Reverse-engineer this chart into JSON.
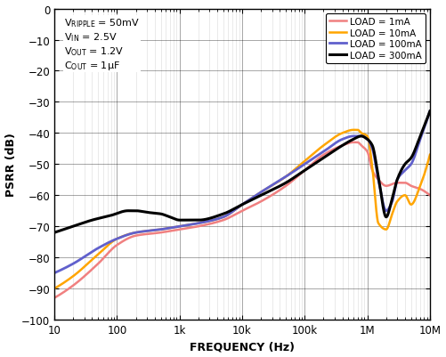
{
  "xlabel": "FREQUENCY (Hz)",
  "ylabel": "PSRR (dB)",
  "xlim": [
    10,
    10000000.0
  ],
  "ylim": [
    -100,
    0
  ],
  "yticks": [
    0,
    -10,
    -20,
    -30,
    -40,
    -50,
    -60,
    -70,
    -80,
    -90,
    -100
  ],
  "legend_labels": [
    "LOAD = 1mA",
    "LOAD = 10mA",
    "LOAD = 100mA",
    "LOAD = 300mA"
  ],
  "colors": [
    "#F08080",
    "#FFA500",
    "#6060CC",
    "#000000"
  ],
  "background_color": "#FFFFFF",
  "grid_major_color": "#000000",
  "grid_minor_color": "#999999",
  "curve_1ma": {
    "freqs": [
      10,
      20,
      50,
      100,
      200,
      500,
      1000,
      2000,
      5000,
      10000,
      20000,
      50000,
      100000,
      200000,
      400000,
      600000,
      700000,
      800000,
      1000000,
      1200000,
      1500000,
      2000000,
      3000000,
      4000000,
      5000000,
      7000000,
      10000000
    ],
    "psrr": [
      -93,
      -89,
      -82,
      -76,
      -73,
      -72,
      -71,
      -70,
      -68,
      -65,
      -62,
      -57,
      -52,
      -47,
      -44,
      -43,
      -43,
      -44,
      -46,
      -52,
      -55,
      -57,
      -56,
      -56,
      -57,
      -58,
      -60
    ]
  },
  "curve_10ma": {
    "freqs": [
      10,
      20,
      50,
      100,
      200,
      500,
      1000,
      2000,
      5000,
      10000,
      20000,
      50000,
      100000,
      200000,
      400000,
      600000,
      700000,
      800000,
      1000000,
      1200000,
      1500000,
      2000000,
      2500000,
      3000000,
      4000000,
      5000000,
      7000000,
      10000000
    ],
    "psrr": [
      -90,
      -86,
      -79,
      -74,
      -72,
      -71,
      -70,
      -69,
      -67,
      -63,
      -59,
      -54,
      -49,
      -44,
      -40,
      -39,
      -39,
      -40,
      -41,
      -51,
      -69,
      -71,
      -66,
      -62,
      -60,
      -63,
      -57,
      -47
    ]
  },
  "curve_100ma": {
    "freqs": [
      10,
      20,
      50,
      100,
      200,
      500,
      1000,
      2000,
      5000,
      10000,
      20000,
      50000,
      100000,
      200000,
      400000,
      600000,
      800000,
      1000000,
      1200000,
      1500000,
      2000000,
      2500000,
      3000000,
      4000000,
      5000000,
      7000000,
      10000000
    ],
    "psrr": [
      -85,
      -82,
      -77,
      -74,
      -72,
      -71,
      -70,
      -69,
      -67,
      -63,
      -59,
      -54,
      -50,
      -46,
      -42,
      -41,
      -41,
      -42,
      -45,
      -55,
      -65,
      -62,
      -55,
      -52,
      -50,
      -42,
      -33
    ]
  },
  "curve_300ma": {
    "freqs": [
      10,
      20,
      40,
      80,
      150,
      200,
      300,
      500,
      700,
      1000,
      2000,
      5000,
      10000,
      20000,
      50000,
      100000,
      200000,
      400000,
      600000,
      800000,
      1000000,
      1200000,
      1500000,
      2000000,
      2500000,
      3000000,
      4000000,
      5000000,
      7000000,
      10000000
    ],
    "psrr": [
      -72,
      -70,
      -68,
      -66.5,
      -65,
      -65,
      -65.5,
      -66,
      -67,
      -68,
      -68,
      -66,
      -63,
      -60,
      -56,
      -52,
      -48,
      -44,
      -42,
      -41,
      -42,
      -44,
      -54,
      -67,
      -61,
      -55,
      -50,
      -48,
      -41,
      -33
    ]
  }
}
